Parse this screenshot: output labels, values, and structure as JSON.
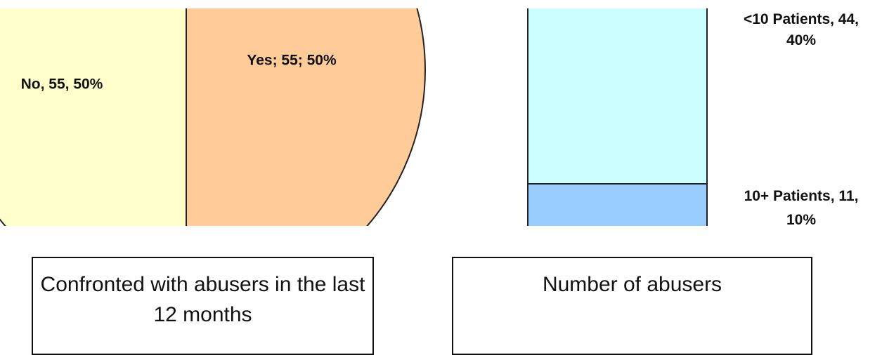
{
  "chart_data": [
    {
      "type": "pie",
      "title": "Confronted with abusers in the last 12 months",
      "values": [
        55,
        55
      ],
      "value_labels": [
        "No, 55, 50%",
        "Yes; 55; 50%"
      ],
      "colors": [
        "#ffffcc",
        "#ffcc99"
      ]
    },
    {
      "type": "stacked_bar",
      "title": "Number of abusers",
      "values": [
        44,
        11
      ],
      "value_labels": [
        "<10 Patients, 44, 40%",
        "10+ Patients, 11, 10%"
      ],
      "colors": [
        "#ccffff",
        "#99ccff"
      ]
    }
  ]
}
